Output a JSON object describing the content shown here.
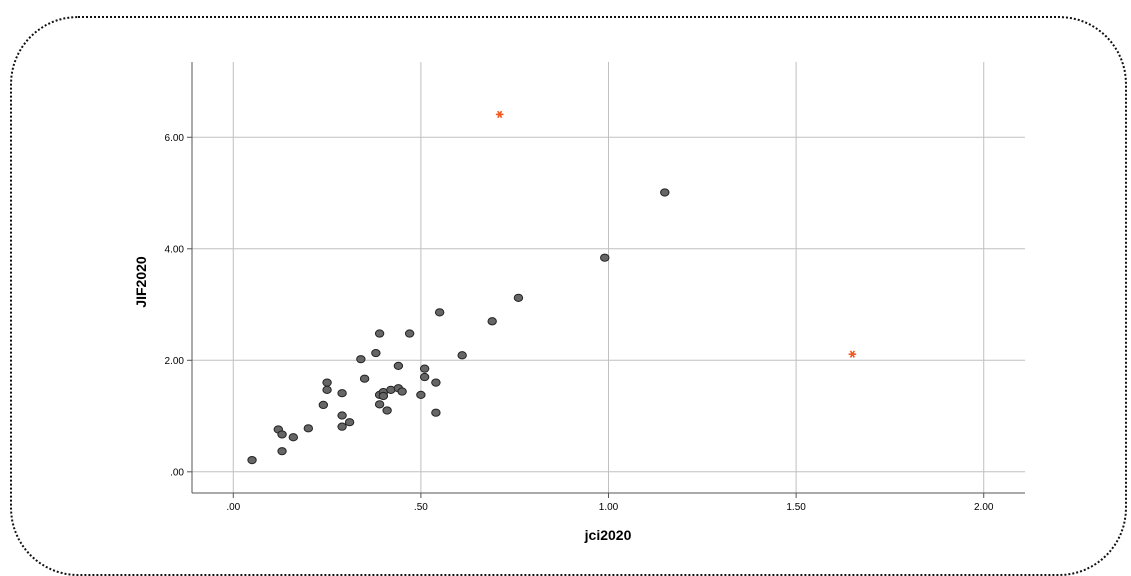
{
  "chart_data": {
    "type": "scatter",
    "xlabel": "jci2020",
    "ylabel": "JIF2020",
    "xlim": [
      -0.11,
      2.11
    ],
    "ylim": [
      -0.38,
      7.35
    ],
    "grid": true,
    "x_ticks": [
      0,
      0.5,
      1.0,
      1.5,
      2.0
    ],
    "x_tick_labels": [
      ".00",
      ".50",
      "1.00",
      "1.50",
      "2.00"
    ],
    "y_ticks": [
      0,
      2,
      4,
      6
    ],
    "y_tick_labels": [
      ".00",
      "2.00",
      "4.00",
      "6.00"
    ],
    "colors": {
      "point": "#666666",
      "point_stroke": "#222222",
      "outlier": "#f05a24",
      "grid": "#c0c0c0",
      "axis": "#555555"
    },
    "series": [
      {
        "marker": "circle",
        "points": [
          [
            0.05,
            0.21
          ],
          [
            0.12,
            0.76
          ],
          [
            0.13,
            0.67
          ],
          [
            0.13,
            0.37
          ],
          [
            0.16,
            0.62
          ],
          [
            0.2,
            0.78
          ],
          [
            0.24,
            1.2
          ],
          [
            0.25,
            1.6
          ],
          [
            0.25,
            1.47
          ],
          [
            0.29,
            1.41
          ],
          [
            0.29,
            1.01
          ],
          [
            0.29,
            0.81
          ],
          [
            0.31,
            0.89
          ],
          [
            0.34,
            2.02
          ],
          [
            0.35,
            1.67
          ],
          [
            0.38,
            2.13
          ],
          [
            0.39,
            2.48
          ],
          [
            0.39,
            1.38
          ],
          [
            0.39,
            1.21
          ],
          [
            0.4,
            1.43
          ],
          [
            0.4,
            1.36
          ],
          [
            0.41,
            1.1
          ],
          [
            0.42,
            1.47
          ],
          [
            0.44,
            1.9
          ],
          [
            0.44,
            1.5
          ],
          [
            0.45,
            1.44
          ],
          [
            0.47,
            2.48
          ],
          [
            0.5,
            1.38
          ],
          [
            0.51,
            1.85
          ],
          [
            0.51,
            1.7
          ],
          [
            0.54,
            1.6
          ],
          [
            0.54,
            1.06
          ],
          [
            0.55,
            2.86
          ],
          [
            0.61,
            2.09
          ],
          [
            0.69,
            2.7
          ],
          [
            0.76,
            3.12
          ],
          [
            0.99,
            3.84
          ],
          [
            1.15,
            5.01
          ]
        ]
      },
      {
        "marker": "star",
        "points": [
          [
            0.71,
            6.41
          ],
          [
            1.65,
            2.11
          ]
        ]
      }
    ]
  }
}
